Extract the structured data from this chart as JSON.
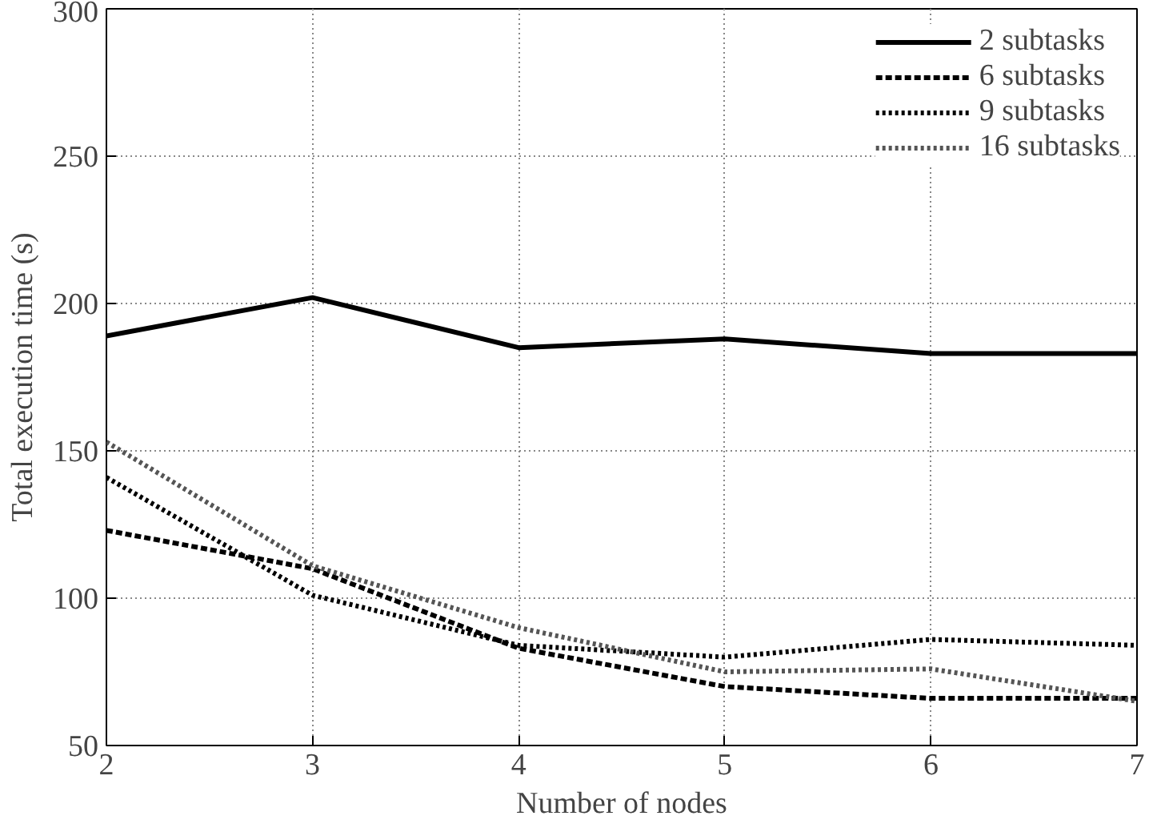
{
  "chart_data": {
    "type": "line",
    "xlabel": "Number of nodes",
    "ylabel": "Total execution time (s)",
    "x": [
      2,
      3,
      4,
      5,
      6,
      7
    ],
    "series": [
      {
        "name": "2 subtasks",
        "color": "#000000",
        "line_style": "solid",
        "values": [
          189,
          202,
          185,
          188,
          183,
          183
        ]
      },
      {
        "name": "6 subtasks",
        "color": "#000000",
        "line_style": "dashed",
        "values": [
          123,
          110,
          83,
          70,
          66,
          66
        ]
      },
      {
        "name": "9 subtasks",
        "color": "#000000",
        "line_style": "dotted",
        "values": [
          141,
          101,
          84,
          80,
          86,
          84
        ]
      },
      {
        "name": "16 subtasks",
        "color": "#555555",
        "line_style": "dotted",
        "values": [
          153,
          111,
          90,
          75,
          76,
          65
        ]
      }
    ],
    "xlim": [
      2,
      7
    ],
    "ylim": [
      50,
      300
    ],
    "xticks": [
      2,
      3,
      4,
      5,
      6,
      7
    ],
    "yticks": [
      50,
      100,
      150,
      200,
      250,
      300
    ],
    "grid": true,
    "legend": "top right",
    "marker": "none"
  }
}
